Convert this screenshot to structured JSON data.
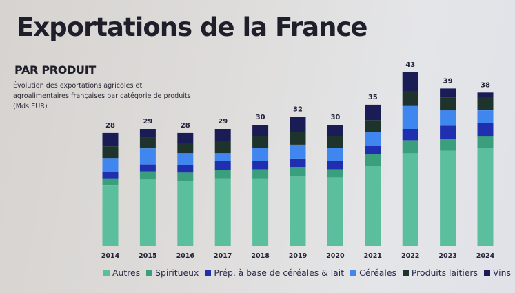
{
  "slide": {
    "title": "Exportations de la France",
    "subtitle": "PAR PRODUIT",
    "description_line1": "Évolution des exportations agricoles et",
    "description_line2": "agroalimentaires françaises par catégorie de produits",
    "description_line3": "(Mds EUR)"
  },
  "chart_data": {
    "type": "bar",
    "stacked": true,
    "title": "Exportations de la France — par produit",
    "subtitle": "Évolution des exportations agricoles et agroalimentaires françaises par catégorie de produits (Mds EUR)",
    "xlabel": "",
    "ylabel": "Mds EUR",
    "ylim": [
      0,
      45
    ],
    "grid": false,
    "legend_position": "bottom",
    "categories": [
      "2014",
      "2015",
      "2016",
      "2017",
      "2018",
      "2019",
      "2020",
      "2021",
      "2022",
      "2023",
      "2024"
    ],
    "totals": [
      28,
      29,
      28,
      29,
      30,
      32,
      30,
      35,
      43,
      39,
      38
    ],
    "total_labels": [
      "28",
      "29",
      "28",
      "29",
      "30",
      "32",
      "30",
      "35",
      "43",
      "39",
      "38"
    ],
    "series": [
      {
        "name": "Autres",
        "color": "#5bbf9e",
        "values": [
          15.0,
          16.5,
          16.2,
          16.8,
          16.8,
          17.2,
          17.0,
          19.8,
          23.0,
          23.6,
          24.4
        ]
      },
      {
        "name": "Spiritueux",
        "color": "#3a9f7c",
        "values": [
          1.8,
          2.0,
          2.0,
          2.0,
          2.2,
          2.4,
          2.0,
          3.0,
          3.2,
          3.0,
          2.9
        ]
      },
      {
        "name": "Prép. à base de céréales & lait",
        "color": "#1f2fb0",
        "values": [
          1.6,
          1.7,
          1.8,
          2.2,
          2.0,
          2.1,
          2.0,
          2.0,
          2.8,
          3.2,
          3.2
        ]
      },
      {
        "name": "Céréales",
        "color": "#3f86ee",
        "values": [
          3.4,
          4.0,
          3.0,
          2.0,
          3.3,
          3.4,
          3.3,
          3.4,
          5.7,
          3.8,
          3.1
        ]
      },
      {
        "name": "Produits laitiers",
        "color": "#1d332c",
        "values": [
          2.9,
          2.6,
          2.6,
          3.1,
          3.0,
          3.1,
          3.0,
          3.0,
          3.7,
          3.2,
          3.3
        ]
      },
      {
        "name": "Vins",
        "color": "#1a1d55",
        "values": [
          3.3,
          2.2,
          2.4,
          2.9,
          2.7,
          3.8,
          2.7,
          3.8,
          4.6,
          2.2,
          1.1
        ]
      }
    ]
  }
}
